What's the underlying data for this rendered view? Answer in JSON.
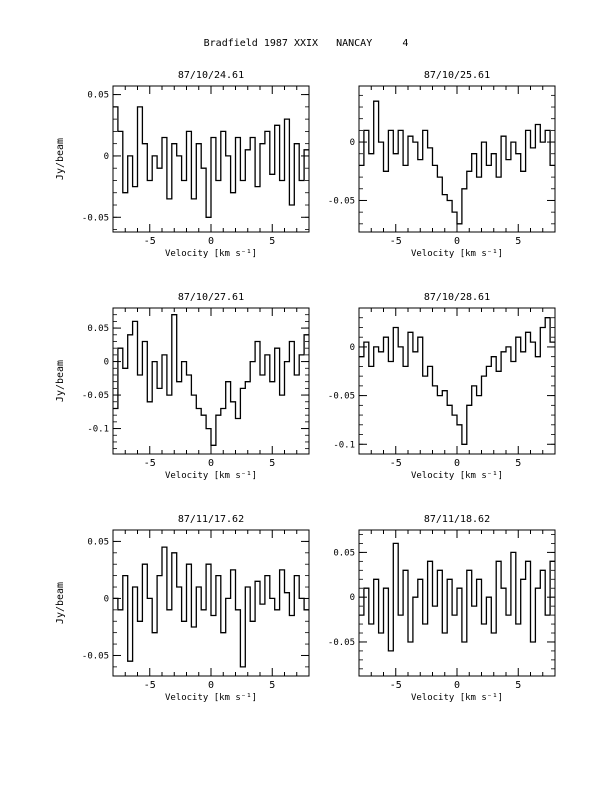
{
  "page_title": "Bradfield 1987 XXIX   NANCAY     4",
  "chart_data": [
    {
      "type": "line",
      "title": "87/10/24.61",
      "xlabel": "Velocity [km s⁻¹]",
      "ylabel": "Jy/beam",
      "xlim": [
        -8,
        8
      ],
      "ylim": [
        -0.062,
        0.057
      ],
      "xticks": [
        -5,
        0,
        5
      ],
      "yticks": [
        -0.05,
        0,
        0.05
      ],
      "ytick_labels": [
        "-0.05",
        "0",
        "0.05"
      ],
      "series": [
        {
          "x": [
            -7.8,
            -7.4,
            -7.0,
            -6.6,
            -6.2,
            -5.8,
            -5.4,
            -5.0,
            -4.6,
            -4.2,
            -3.8,
            -3.4,
            -3.0,
            -2.6,
            -2.2,
            -1.8,
            -1.4,
            -1.0,
            -0.6,
            -0.2,
            0.2,
            0.6,
            1.0,
            1.4,
            1.8,
            2.2,
            2.6,
            3.0,
            3.4,
            3.8,
            4.2,
            4.6,
            5.0,
            5.4,
            5.8,
            6.2,
            6.6,
            7.0,
            7.4,
            7.8
          ],
          "values": [
            0.04,
            0.02,
            -0.03,
            0.0,
            -0.025,
            0.04,
            0.01,
            -0.02,
            0.0,
            -0.01,
            0.015,
            -0.035,
            0.01,
            0.0,
            -0.02,
            0.02,
            -0.035,
            0.01,
            -0.01,
            -0.05,
            0.015,
            -0.02,
            0.02,
            0.0,
            -0.03,
            0.015,
            -0.02,
            0.005,
            0.015,
            -0.025,
            0.01,
            0.02,
            -0.015,
            0.025,
            -0.02,
            0.03,
            -0.04,
            0.01,
            -0.02,
            0.005
          ]
        }
      ]
    },
    {
      "type": "line",
      "title": "87/10/25.61",
      "xlabel": "Velocity [km s⁻¹]",
      "ylabel": "",
      "xlim": [
        -8,
        8
      ],
      "ylim": [
        -0.077,
        0.048
      ],
      "xticks": [
        -5,
        0,
        5
      ],
      "yticks": [
        -0.05,
        0
      ],
      "ytick_labels": [
        "-0.05",
        "0"
      ],
      "series": [
        {
          "x": [
            -7.8,
            -7.4,
            -7.0,
            -6.6,
            -6.2,
            -5.8,
            -5.4,
            -5.0,
            -4.6,
            -4.2,
            -3.8,
            -3.4,
            -3.0,
            -2.6,
            -2.2,
            -1.8,
            -1.4,
            -1.0,
            -0.6,
            -0.2,
            0.2,
            0.6,
            1.0,
            1.4,
            1.8,
            2.2,
            2.6,
            3.0,
            3.4,
            3.8,
            4.2,
            4.6,
            5.0,
            5.4,
            5.8,
            6.2,
            6.6,
            7.0,
            7.4,
            7.8
          ],
          "values": [
            -0.02,
            0.01,
            -0.01,
            0.035,
            0.0,
            -0.025,
            0.01,
            -0.01,
            0.01,
            -0.02,
            0.005,
            0.0,
            -0.015,
            0.01,
            -0.005,
            -0.02,
            -0.03,
            -0.045,
            -0.05,
            -0.06,
            -0.07,
            -0.04,
            -0.025,
            -0.01,
            -0.03,
            0.0,
            -0.02,
            -0.01,
            -0.03,
            0.005,
            -0.015,
            0.0,
            -0.01,
            -0.025,
            0.01,
            -0.005,
            0.015,
            0.0,
            0.01,
            -0.02
          ]
        }
      ]
    },
    {
      "type": "line",
      "title": "87/10/27.61",
      "xlabel": "Velocity [km s⁻¹]",
      "ylabel": "Jy/beam",
      "xlim": [
        -8,
        8
      ],
      "ylim": [
        -0.138,
        0.08
      ],
      "xticks": [
        -5,
        0,
        5
      ],
      "yticks": [
        -0.1,
        -0.05,
        0,
        0.05
      ],
      "ytick_labels": [
        "-0.1",
        "-0.05",
        "0",
        "0.05"
      ],
      "series": [
        {
          "x": [
            -7.8,
            -7.4,
            -7.0,
            -6.6,
            -6.2,
            -5.8,
            -5.4,
            -5.0,
            -4.6,
            -4.2,
            -3.8,
            -3.4,
            -3.0,
            -2.6,
            -2.2,
            -1.8,
            -1.4,
            -1.0,
            -0.6,
            -0.2,
            0.2,
            0.6,
            1.0,
            1.4,
            1.8,
            2.2,
            2.6,
            3.0,
            3.4,
            3.8,
            4.2,
            4.6,
            5.0,
            5.4,
            5.8,
            6.2,
            6.6,
            7.0,
            7.4,
            7.8
          ],
          "values": [
            -0.07,
            0.02,
            -0.01,
            0.04,
            0.06,
            -0.02,
            0.03,
            -0.06,
            0.0,
            -0.04,
            0.01,
            -0.05,
            0.07,
            -0.03,
            0.0,
            -0.02,
            -0.05,
            -0.07,
            -0.08,
            -0.1,
            -0.125,
            -0.08,
            -0.07,
            -0.03,
            -0.06,
            -0.085,
            -0.04,
            -0.03,
            0.0,
            0.03,
            -0.02,
            0.01,
            -0.03,
            0.02,
            -0.05,
            0.0,
            0.03,
            -0.02,
            0.01,
            0.04
          ]
        }
      ]
    },
    {
      "type": "line",
      "title": "87/10/28.61",
      "xlabel": "Velocity [km s⁻¹]",
      "ylabel": "",
      "xlim": [
        -8,
        8
      ],
      "ylim": [
        -0.11,
        0.04
      ],
      "xticks": [
        -5,
        0,
        5
      ],
      "yticks": [
        -0.1,
        -0.05,
        0
      ],
      "ytick_labels": [
        "-0.1",
        "-0.05",
        "0"
      ],
      "series": [
        {
          "x": [
            -7.8,
            -7.4,
            -7.0,
            -6.6,
            -6.2,
            -5.8,
            -5.4,
            -5.0,
            -4.6,
            -4.2,
            -3.8,
            -3.4,
            -3.0,
            -2.6,
            -2.2,
            -1.8,
            -1.4,
            -1.0,
            -0.6,
            -0.2,
            0.2,
            0.6,
            1.0,
            1.4,
            1.8,
            2.2,
            2.6,
            3.0,
            3.4,
            3.8,
            4.2,
            4.6,
            5.0,
            5.4,
            5.8,
            6.2,
            6.6,
            7.0,
            7.4,
            7.8
          ],
          "values": [
            -0.01,
            0.005,
            -0.02,
            0.0,
            -0.005,
            0.01,
            -0.015,
            0.02,
            0.0,
            -0.02,
            0.015,
            -0.005,
            0.01,
            -0.03,
            -0.02,
            -0.04,
            -0.05,
            -0.045,
            -0.06,
            -0.07,
            -0.08,
            -0.1,
            -0.06,
            -0.04,
            -0.05,
            -0.03,
            -0.02,
            -0.01,
            -0.025,
            -0.005,
            0.0,
            -0.015,
            0.01,
            -0.005,
            0.015,
            0.005,
            -0.01,
            0.02,
            0.03,
            0.005
          ]
        }
      ]
    },
    {
      "type": "line",
      "title": "87/11/17.62",
      "xlabel": "Velocity [km s⁻¹]",
      "ylabel": "Jy/beam",
      "xlim": [
        -8,
        8
      ],
      "ylim": [
        -0.068,
        0.06
      ],
      "xticks": [
        -5,
        0,
        5
      ],
      "yticks": [
        -0.05,
        0,
        0.05
      ],
      "ytick_labels": [
        "-0.05",
        "0",
        "0.05"
      ],
      "series": [
        {
          "x": [
            -7.8,
            -7.4,
            -7.0,
            -6.6,
            -6.2,
            -5.8,
            -5.4,
            -5.0,
            -4.6,
            -4.2,
            -3.8,
            -3.4,
            -3.0,
            -2.6,
            -2.2,
            -1.8,
            -1.4,
            -1.0,
            -0.6,
            -0.2,
            0.2,
            0.6,
            1.0,
            1.4,
            1.8,
            2.2,
            2.6,
            3.0,
            3.4,
            3.8,
            4.2,
            4.6,
            5.0,
            5.4,
            5.8,
            6.2,
            6.6,
            7.0,
            7.4,
            7.8
          ],
          "values": [
            0.0,
            -0.01,
            0.02,
            -0.055,
            0.01,
            -0.02,
            0.03,
            0.0,
            -0.03,
            0.02,
            0.045,
            -0.01,
            0.04,
            0.01,
            -0.02,
            0.03,
            -0.025,
            0.01,
            -0.01,
            0.03,
            -0.015,
            0.02,
            -0.03,
            0.0,
            0.025,
            -0.01,
            -0.06,
            0.01,
            -0.02,
            0.015,
            -0.005,
            0.02,
            0.0,
            -0.01,
            0.025,
            0.005,
            -0.015,
            0.02,
            0.0,
            -0.01
          ]
        }
      ]
    },
    {
      "type": "line",
      "title": "87/11/18.62",
      "xlabel": "Velocity [km s⁻¹]",
      "ylabel": "",
      "xlim": [
        -8,
        8
      ],
      "ylim": [
        -0.088,
        0.075
      ],
      "xticks": [
        -5,
        0,
        5
      ],
      "yticks": [
        -0.05,
        0,
        0.05
      ],
      "ytick_labels": [
        "-0.05",
        "0",
        "0.05"
      ],
      "series": [
        {
          "x": [
            -7.8,
            -7.4,
            -7.0,
            -6.6,
            -6.2,
            -5.8,
            -5.4,
            -5.0,
            -4.6,
            -4.2,
            -3.8,
            -3.4,
            -3.0,
            -2.6,
            -2.2,
            -1.8,
            -1.4,
            -1.0,
            -0.6,
            -0.2,
            0.2,
            0.6,
            1.0,
            1.4,
            1.8,
            2.2,
            2.6,
            3.0,
            3.4,
            3.8,
            4.2,
            4.6,
            5.0,
            5.4,
            5.8,
            6.2,
            6.6,
            7.0,
            7.4,
            7.8
          ],
          "values": [
            -0.02,
            0.01,
            -0.03,
            0.02,
            -0.04,
            0.01,
            -0.06,
            0.06,
            -0.02,
            0.03,
            -0.05,
            0.0,
            0.02,
            -0.03,
            0.04,
            -0.01,
            0.03,
            -0.04,
            0.02,
            -0.02,
            0.01,
            -0.05,
            0.03,
            -0.01,
            0.02,
            -0.03,
            0.0,
            -0.04,
            0.04,
            0.01,
            -0.02,
            0.05,
            -0.03,
            0.02,
            0.04,
            -0.05,
            0.01,
            0.03,
            -0.02,
            0.04
          ]
        }
      ]
    }
  ]
}
